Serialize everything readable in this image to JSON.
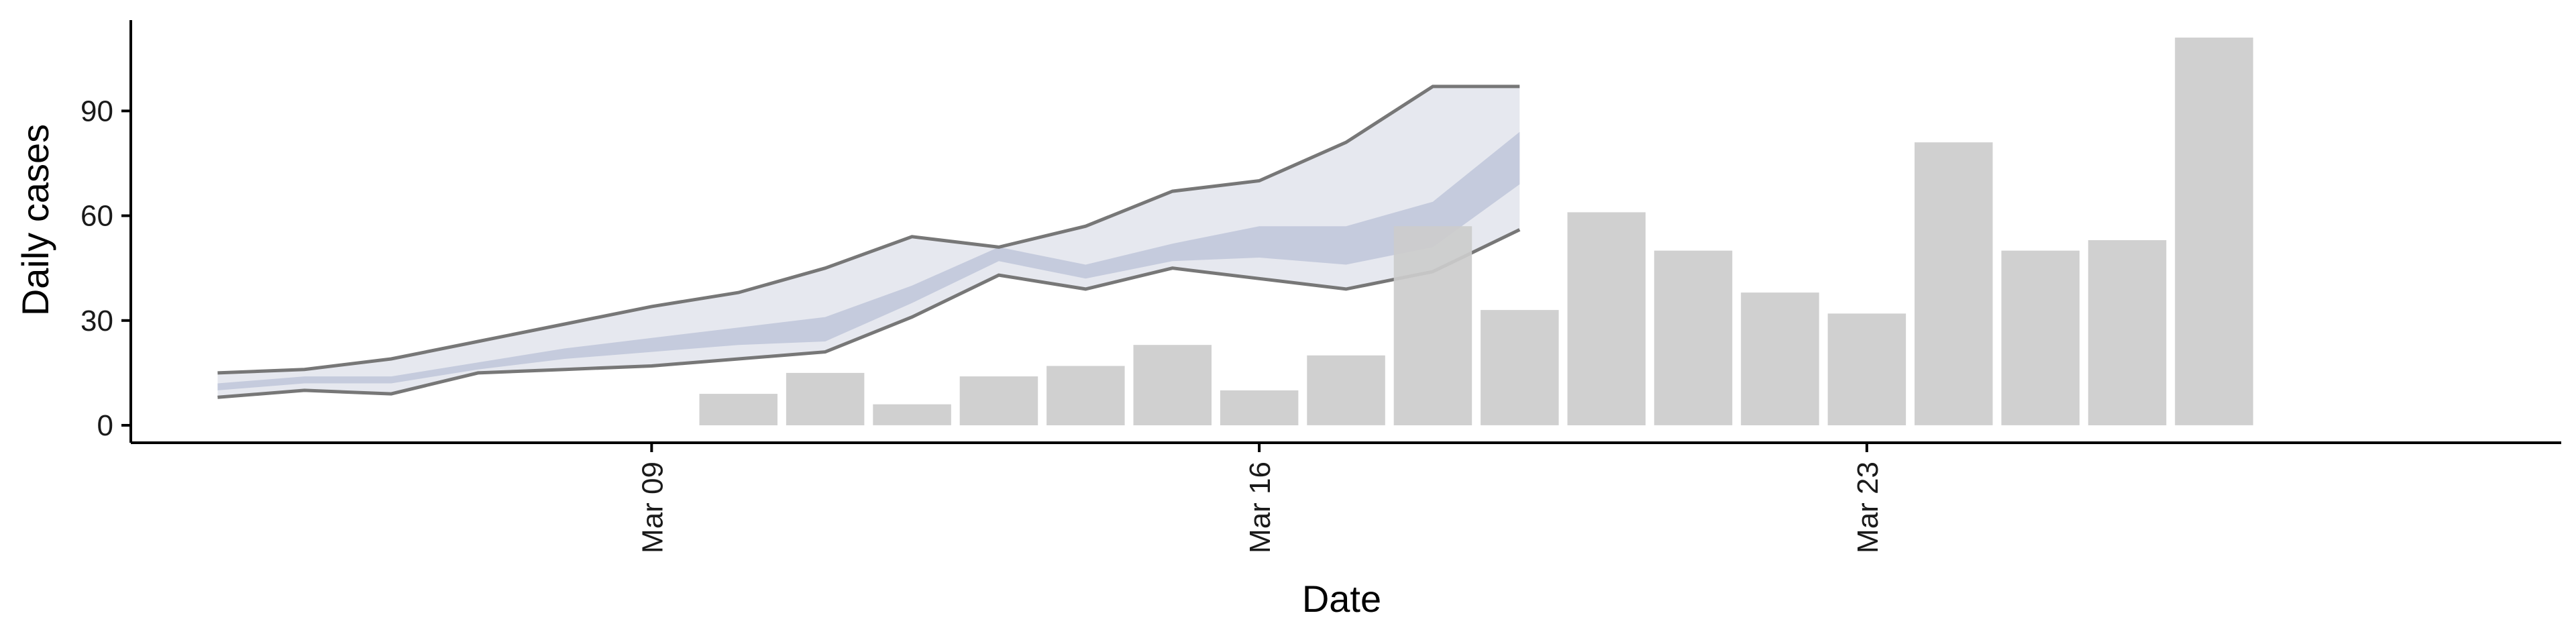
{
  "chart_data": {
    "type": "bar",
    "xlabel": "Date",
    "ylabel": "Daily cases",
    "x_tick_labels": [
      "Mar 09",
      "Mar 16",
      "Mar 23"
    ],
    "x_tick_dates": [
      "2020-03-09",
      "2020-03-16",
      "2020-03-23"
    ],
    "y_ticks": [
      0,
      30,
      60,
      90
    ],
    "ylim": [
      -5,
      116
    ],
    "xlim": [
      "2020-03-03",
      "2020-03-31"
    ],
    "grid": false,
    "legend": "none",
    "bars": {
      "name": "",
      "dates": [
        "2020-03-10",
        "2020-03-11",
        "2020-03-12",
        "2020-03-13",
        "2020-03-14",
        "2020-03-15",
        "2020-03-16",
        "2020-03-17",
        "2020-03-18",
        "2020-03-19",
        "2020-03-20",
        "2020-03-21",
        "2020-03-22",
        "2020-03-23",
        "2020-03-24",
        "2020-03-25",
        "2020-03-26",
        "2020-03-27"
      ],
      "values": [
        9,
        15,
        6,
        14,
        17,
        23,
        10,
        20,
        57,
        33,
        61,
        50,
        38,
        32,
        81,
        50,
        53,
        111
      ]
    },
    "band_dates": [
      "2020-03-04",
      "2020-03-05",
      "2020-03-06",
      "2020-03-07",
      "2020-03-08",
      "2020-03-09",
      "2020-03-10",
      "2020-03-11",
      "2020-03-12",
      "2020-03-13",
      "2020-03-14",
      "2020-03-15",
      "2020-03-16",
      "2020-03-17",
      "2020-03-18",
      "2020-03-19"
    ],
    "bands": {
      "outer": {
        "lower": [
          8,
          10,
          9,
          15,
          16,
          17,
          19,
          21,
          31,
          43,
          39,
          45,
          42,
          39,
          44,
          56
        ],
        "upper": [
          15,
          16,
          19,
          24,
          29,
          34,
          38,
          45,
          54,
          51,
          57,
          67,
          70,
          81,
          97,
          97
        ]
      },
      "inner": {
        "lower": [
          10,
          12,
          12,
          16,
          19,
          21,
          23,
          24,
          35,
          47,
          42,
          47,
          48,
          46,
          51,
          69
        ],
        "upper": [
          12,
          14,
          14,
          18,
          22,
          25,
          28,
          31,
          40,
          51,
          46,
          52,
          57,
          57,
          64,
          84
        ]
      }
    },
    "colors": {
      "bars": "#cccccc",
      "outer_band": "#e6e8ef",
      "inner_band": "#c5cbdd",
      "band_lines": "#777777",
      "axis": "#000000"
    }
  }
}
